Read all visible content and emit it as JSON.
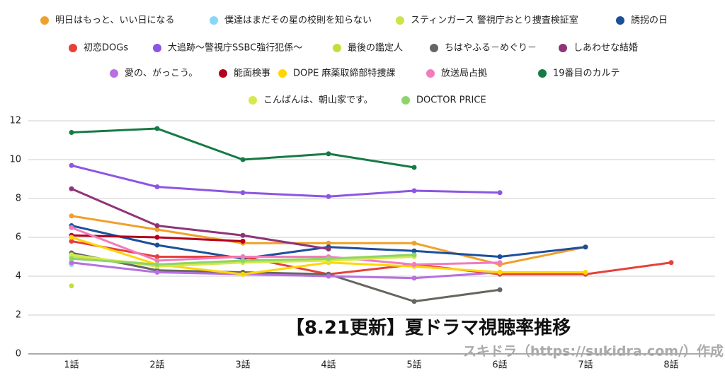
{
  "chart_data": {
    "type": "line",
    "title": "【8.21更新】夏ドラマ視聴率推移",
    "annotation": "スキドラ（https://sukidra.com/）作成",
    "categories": [
      "1話",
      "2話",
      "3話",
      "4話",
      "5話",
      "6話",
      "7話",
      "8話"
    ],
    "ylim": [
      0,
      12
    ],
    "yticks": [
      0,
      2,
      4,
      6,
      8,
      10,
      12
    ],
    "grid": true,
    "legend": "top",
    "series": [
      {
        "name": "明日はもっと、いい日になる",
        "color": "#f0a02a",
        "values": [
          7.1,
          6.4,
          5.7,
          5.7,
          5.7,
          4.6,
          5.5,
          null
        ]
      },
      {
        "name": "僕達はまだその星の校則を知らない",
        "color": "#86d8f5",
        "values": [
          4.6,
          null,
          null,
          null,
          null,
          null,
          null,
          null
        ]
      },
      {
        "name": "スティンガース 警視庁おとり捜査検証室",
        "color": "#cfe24a",
        "values": [
          5.0,
          4.6,
          4.8,
          4.9,
          5.1,
          null,
          null,
          null
        ]
      },
      {
        "name": "誘拐の日",
        "color": "#1b4f9c",
        "values": [
          6.6,
          5.6,
          4.9,
          5.5,
          5.3,
          5.0,
          5.5,
          null
        ]
      },
      {
        "name": "初恋DOGs",
        "color": "#e5413b",
        "values": [
          5.8,
          5.0,
          5.0,
          4.1,
          4.6,
          4.1,
          4.1,
          4.7
        ]
      },
      {
        "name": "大追跡〜警視庁SSBC強行犯係〜",
        "color": "#8d55e3",
        "values": [
          9.7,
          8.6,
          8.3,
          8.1,
          8.4,
          8.3,
          null,
          null
        ]
      },
      {
        "name": "最後の鑑定人",
        "color": "#c8dc3c",
        "values": [
          3.5,
          null,
          null,
          null,
          null,
          null,
          null,
          null
        ]
      },
      {
        "name": "ちはやふる－めぐり－",
        "color": "#666660",
        "values": [
          5.2,
          4.3,
          4.2,
          4.1,
          2.7,
          3.3,
          null,
          null
        ]
      },
      {
        "name": "しあわせな結婚",
        "color": "#8e3478",
        "values": [
          8.5,
          6.6,
          6.1,
          5.4,
          null,
          null,
          null,
          null
        ]
      },
      {
        "name": "愛の、がっこう。",
        "color": "#b670e2",
        "values": [
          4.7,
          4.2,
          4.1,
          4.0,
          3.9,
          4.2,
          null,
          null
        ]
      },
      {
        "name": "能面検事",
        "color": "#b3001e",
        "values": [
          6.1,
          6.0,
          5.8,
          null,
          null,
          null,
          null,
          null
        ]
      },
      {
        "name": "DOPE 麻薬取締部特捜課",
        "color": "#ffd600",
        "values": [
          6.0,
          4.6,
          4.1,
          4.7,
          4.5,
          4.2,
          4.2,
          null
        ]
      },
      {
        "name": "放送局占拠",
        "color": "#f27bbd",
        "values": [
          6.5,
          4.8,
          5.0,
          5.0,
          4.6,
          4.7,
          null,
          null
        ]
      },
      {
        "name": "19番目のカルテ",
        "color": "#167a45",
        "values": [
          11.4,
          11.6,
          10.0,
          10.3,
          9.6,
          null,
          null,
          null
        ]
      },
      {
        "name": "こんばんは、朝山家です。",
        "color": "#d6e94c",
        "values": [
          5.1,
          4.5,
          4.7,
          4.8,
          5.0,
          null,
          null,
          null
        ]
      },
      {
        "name": "DOCTOR PRICE",
        "color": "#8dd46a",
        "values": [
          4.9,
          4.6,
          4.8,
          4.9,
          5.1,
          null,
          null,
          null
        ]
      }
    ]
  }
}
